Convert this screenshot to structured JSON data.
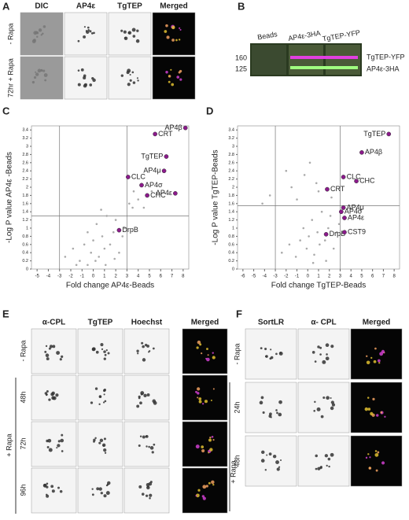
{
  "panel_a": {
    "label": "A",
    "columns": [
      "DIC",
      "AP4ε",
      "TgTEP",
      "Merged"
    ],
    "rows": [
      "- Rapa",
      "72hr + Rapa"
    ]
  },
  "panel_b": {
    "label": "B",
    "lanes": [
      "Beads",
      "AP4ε-3HA",
      "TgTEP-YFP"
    ],
    "markers": [
      160,
      125
    ],
    "bands": [
      "TgTEP-YFP",
      "AP4ε-3HA"
    ]
  },
  "panel_e": {
    "label": "E",
    "columns": [
      "α-CPL",
      "TgTEP",
      "Hoechst",
      "Merged"
    ],
    "rows": [
      "- Rapa",
      "48h",
      "72h",
      "96h"
    ],
    "group": "+ Rapa"
  },
  "panel_f": {
    "label": "F",
    "columns": [
      "SortLR",
      "α- CPL",
      "Merged"
    ],
    "rows": [
      "- Rapa",
      "24h",
      "48h"
    ],
    "group": "+ Rapa"
  },
  "chart_data": [
    {
      "type": "scatter",
      "panel": "C",
      "xlabel": "Fold change AP4ε-Beads",
      "ylabel": "-Log P value AP4ε -Beads",
      "xlim": [
        -5.5,
        8.5
      ],
      "xticks": [
        -5,
        -4,
        -3,
        -2,
        -1,
        0,
        1,
        2,
        3,
        4,
        5,
        6,
        7,
        8
      ],
      "ylim": [
        0,
        3.5
      ],
      "yticks": [
        0,
        0.2,
        0.4,
        0.6,
        0.8,
        1,
        1.2,
        1.4,
        1.6,
        1.8,
        2,
        2.2,
        2.4,
        2.6,
        2.8,
        3,
        3.2,
        3.4
      ],
      "vlines": [
        -3,
        3
      ],
      "hline": 1.3,
      "color": "#aaaaaa",
      "x": [
        -2.5,
        -1.8,
        -1.2,
        -0.8,
        -0.5,
        -0.2,
        0,
        0.3,
        0.5,
        0.8,
        1,
        1.2,
        1.5,
        1.8,
        2,
        2.3,
        2.6,
        3.2,
        3.5,
        4,
        -0.5,
        0.2,
        1.1,
        2.8,
        3.6,
        -1.5,
        0.7,
        1.9,
        4.5,
        5.2
      ],
      "values": [
        0.3,
        0.5,
        0.2,
        0.6,
        0.9,
        0.4,
        0.7,
        1.1,
        0.3,
        0.8,
        0.5,
        1.3,
        0.6,
        0.9,
        1.2,
        0.4,
        0.8,
        1.6,
        1.5,
        1.7,
        0.1,
        0.2,
        0.1,
        1.0,
        1.9,
        0.1,
        1.45,
        0.25,
        1.5,
        1.9
      ],
      "highlights": {
        "color": "#8b1a8b",
        "labels": [
          "AP4β",
          "CRT",
          "TgTEP",
          "AP4μ",
          "CLC",
          "AP4σ",
          "CHC",
          "AP4ε",
          "DrpB"
        ],
        "x": [
          8.2,
          5.5,
          6.5,
          6.3,
          3.1,
          4.3,
          4.8,
          7.3,
          2.3
        ],
        "values": [
          3.45,
          3.3,
          2.75,
          2.4,
          2.25,
          2.05,
          1.8,
          1.85,
          0.95
        ]
      }
    },
    {
      "type": "scatter",
      "panel": "D",
      "xlabel": "Fold change TgTEP-Beads",
      "ylabel": "-Log P value TgTEP-Beads",
      "xlim": [
        -6.5,
        8.5
      ],
      "xticks": [
        -6,
        -5,
        -4,
        -3,
        -2,
        -1,
        0,
        1,
        2,
        3,
        4,
        5,
        6,
        7,
        8
      ],
      "ylim": [
        0,
        3.5
      ],
      "yticks": [
        0,
        0.2,
        0.4,
        0.6,
        0.8,
        1,
        1.2,
        1.4,
        1.6,
        1.8,
        2,
        2.2,
        2.4,
        2.6,
        2.8,
        3,
        3.2,
        3.4
      ],
      "vlines": [
        -3,
        3
      ],
      "hline": 1.55,
      "color": "#aaaaaa",
      "x": [
        -2.4,
        -1.7,
        -1.1,
        -0.7,
        -0.4,
        -0.1,
        0.1,
        0.4,
        0.6,
        0.9,
        1.1,
        1.3,
        1.6,
        1.9,
        2.1,
        2.4,
        2.7,
        -3.5,
        -1.5,
        -0.3,
        0.2,
        1.0,
        2.9,
        -4.2,
        0.8,
        1.7,
        -2.0,
        0.5,
        -1.0,
        2.2
      ],
      "values": [
        0.4,
        0.6,
        0.3,
        0.7,
        1.0,
        0.5,
        0.8,
        1.2,
        0.35,
        0.9,
        0.6,
        1.4,
        0.7,
        1.0,
        1.3,
        0.5,
        0.9,
        1.8,
        2.0,
        2.3,
        2.6,
        1.9,
        1.1,
        1.6,
        2.1,
        0.2,
        2.4,
        0.15,
        1.7,
        1.75
      ],
      "highlights": {
        "color": "#8b1a8b",
        "labels": [
          "TgTEP",
          "AP4β",
          "CLC",
          "CHC",
          "CRT",
          "AP4μ",
          "AP4σ",
          "AP4ε",
          "DrpB",
          "CST9"
        ],
        "x": [
          7.5,
          5,
          3.3,
          4.5,
          1.8,
          3.3,
          3.1,
          3.4,
          1.7,
          3.4
        ],
        "values": [
          3.3,
          2.85,
          2.25,
          2.15,
          1.95,
          1.5,
          1.4,
          1.25,
          0.85,
          0.9
        ]
      }
    }
  ]
}
